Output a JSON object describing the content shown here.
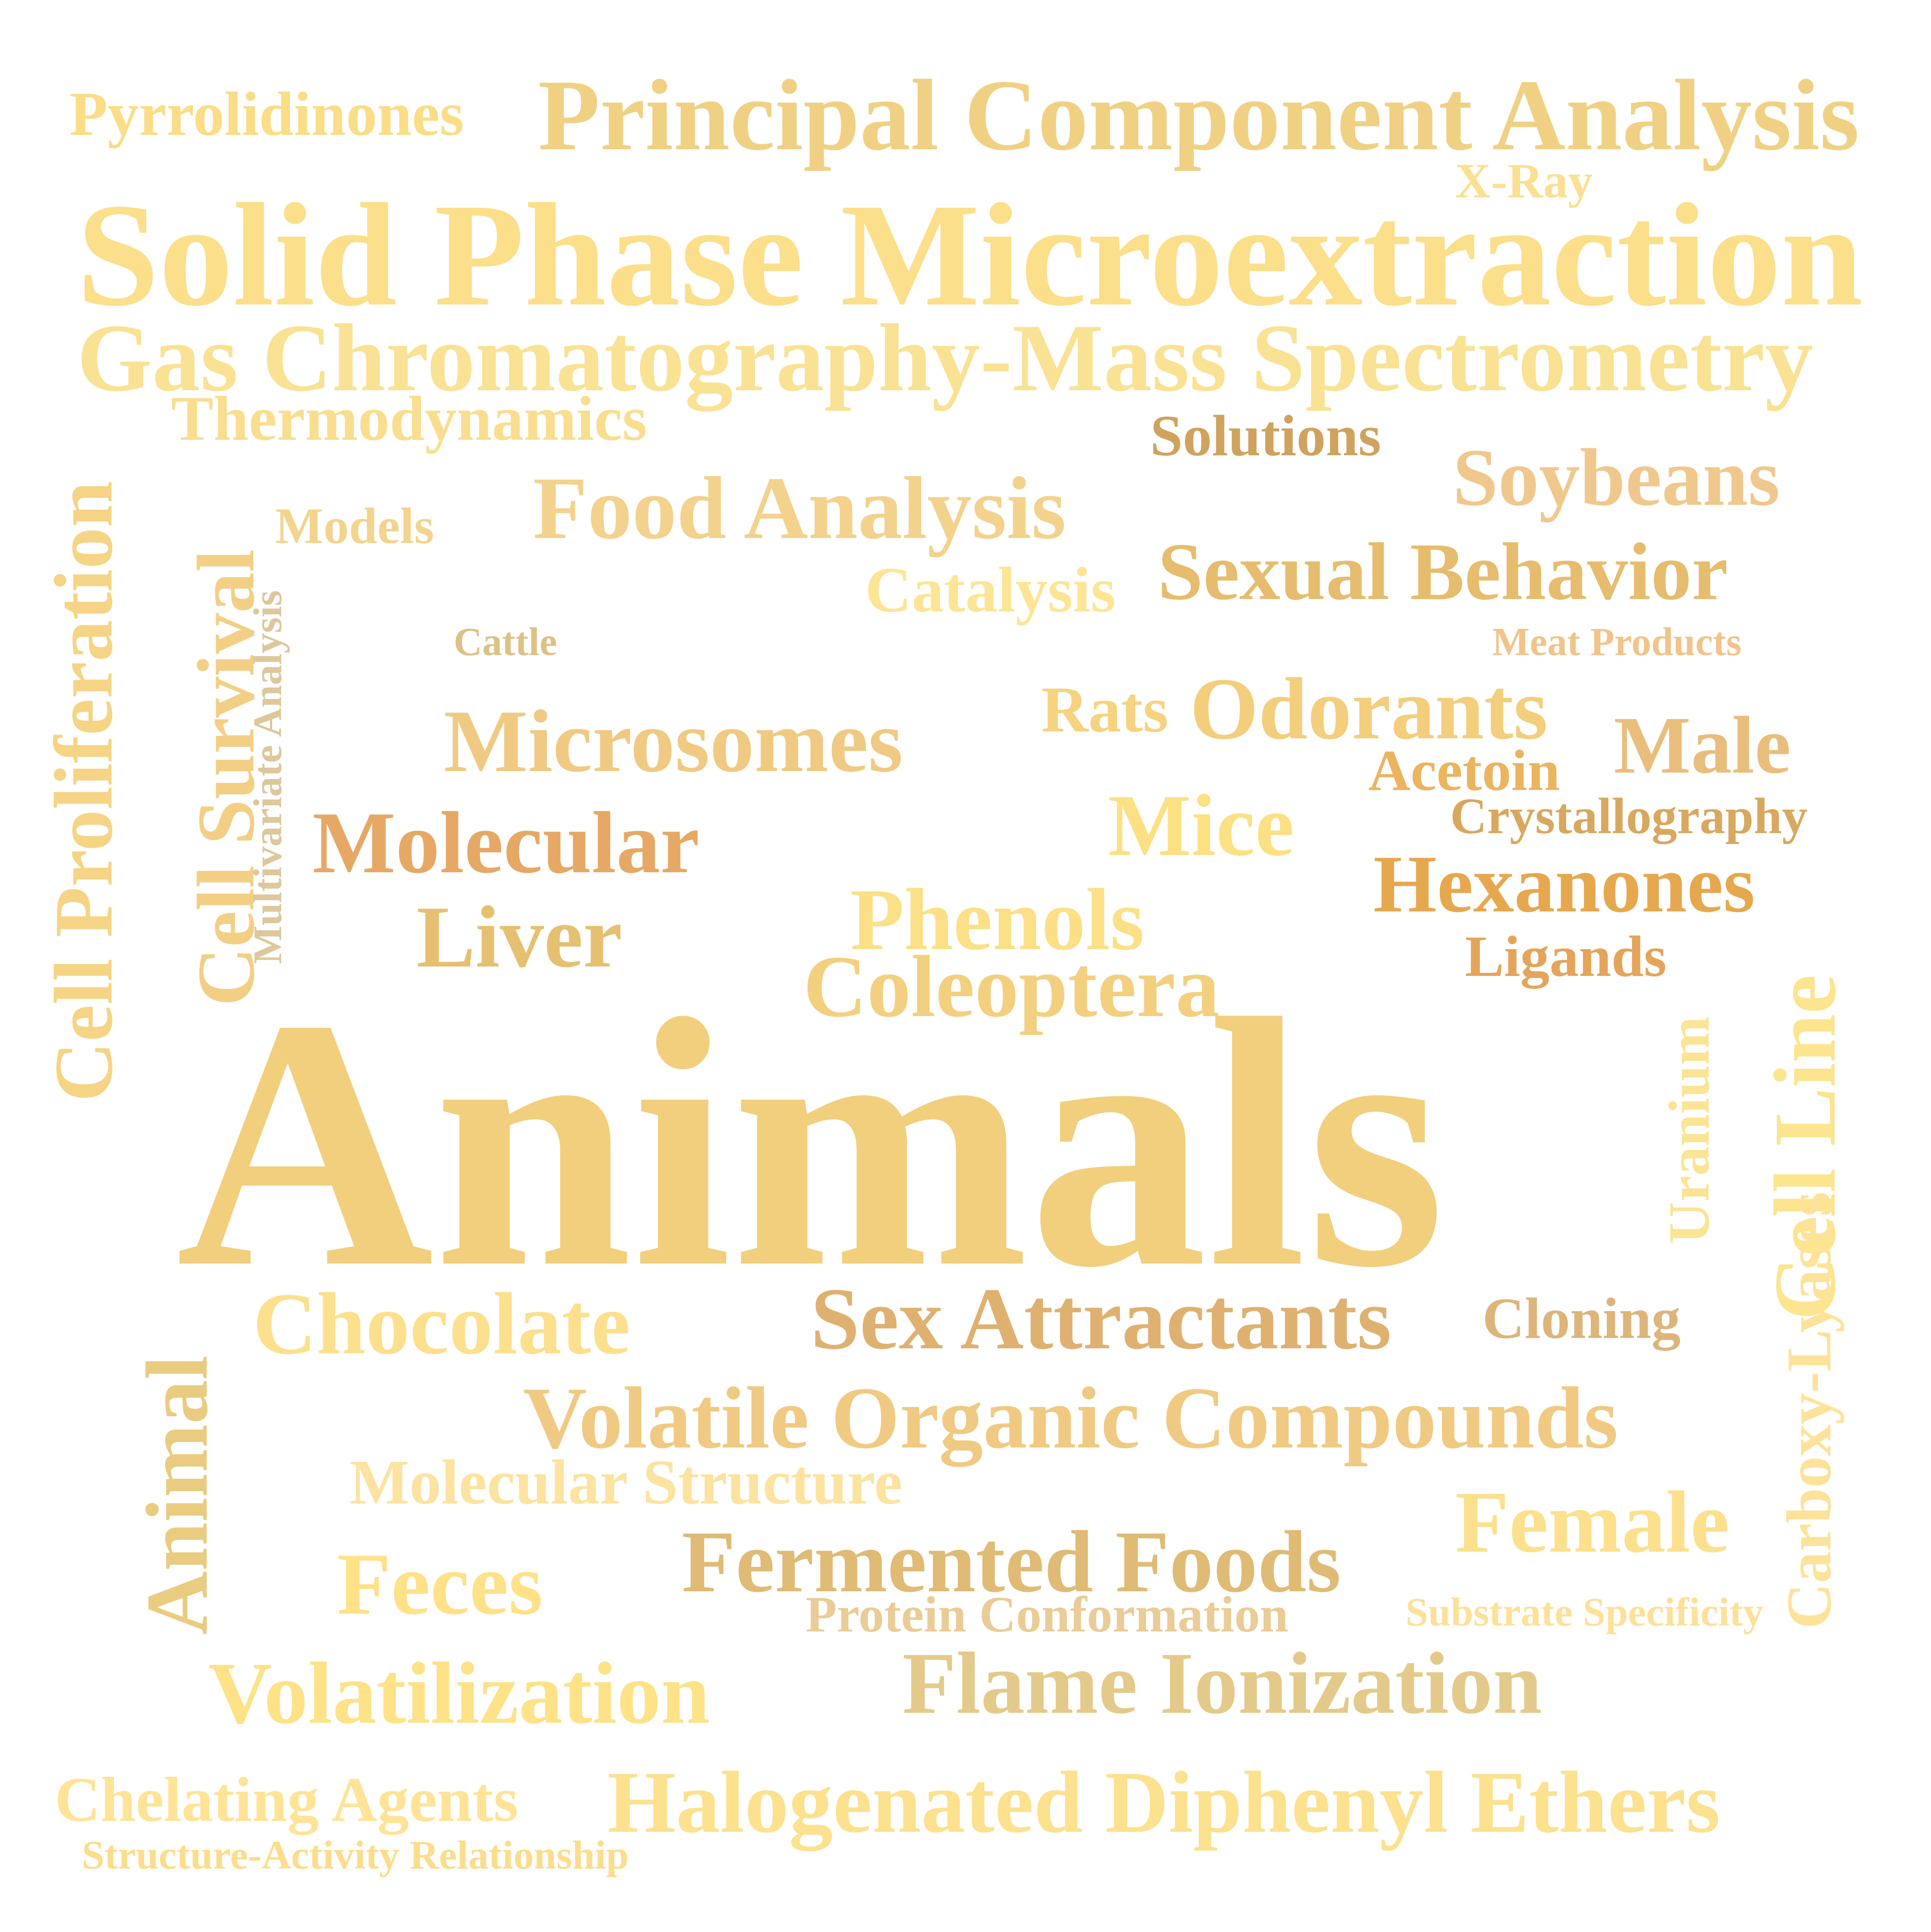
{
  "words": [
    {
      "text": "Pyrrolidinones",
      "color": "#FADD86"
    },
    {
      "text": "Principal Component Analysis",
      "color": "#F0D184"
    },
    {
      "text": "X-Ray",
      "color": "#FBE093"
    },
    {
      "text": "Solid Phase Microextraction",
      "color": "#FBDF8A"
    },
    {
      "text": "Gas Chromatography-Mass Spectrometry",
      "color": "#FAE294"
    },
    {
      "text": "Thermodynamics",
      "color": "#FADE8F"
    },
    {
      "text": "Solutions",
      "color": "#CFA35D"
    },
    {
      "text": "Soybeans",
      "color": "#F0C88D"
    },
    {
      "text": "Food Analysis",
      "color": "#F3D28D"
    },
    {
      "text": "Models",
      "color": "#F3D48E"
    },
    {
      "text": "Sexual Behavior",
      "color": "#E6BD6E"
    },
    {
      "text": "Catalysis",
      "color": "#FDE595"
    },
    {
      "text": "Cattle",
      "color": "#DCC287"
    },
    {
      "text": "Meat Products",
      "color": "#F1C48A"
    },
    {
      "text": "Cell Proliferation",
      "color": "#F5D485"
    },
    {
      "text": "Cell Survival",
      "color": "#F3CF86"
    },
    {
      "text": "Multivariate Analysis",
      "color": "#DDC79B"
    },
    {
      "text": "Rats",
      "color": "#F6D380"
    },
    {
      "text": "Odorants",
      "color": "#F3CE7C"
    },
    {
      "text": "Microsomes",
      "color": "#F0CA83"
    },
    {
      "text": "Male",
      "color": "#E9BE7C"
    },
    {
      "text": "Acetoin",
      "color": "#EBB45F"
    },
    {
      "text": "Crystallography",
      "color": "#D8A85F"
    },
    {
      "text": "Molecular",
      "color": "#E5A965"
    },
    {
      "text": "Mice",
      "color": "#FBE183"
    },
    {
      "text": "Hexanones",
      "color": "#E6A84F"
    },
    {
      "text": "Liver",
      "color": "#E6C071"
    },
    {
      "text": "Phenols",
      "color": "#FBE087"
    },
    {
      "text": "Ligands",
      "color": "#E4A55A"
    },
    {
      "text": "Coleoptera",
      "color": "#F3D07F"
    },
    {
      "text": "Uranium",
      "color": "#FBE494"
    },
    {
      "text": "Cell Line",
      "color": "#FDE58F"
    },
    {
      "text": "Animals",
      "color": "#F1CF7D"
    },
    {
      "text": "Chocolate",
      "color": "#FCE08D"
    },
    {
      "text": "Sex Attractants",
      "color": "#DFB170"
    },
    {
      "text": "Cloning",
      "color": "#DDB57A"
    },
    {
      "text": "Carboxy-Lyases",
      "color": "#FDE39A"
    },
    {
      "text": "Animal",
      "color": "#E9CC7F"
    },
    {
      "text": "Volatile Organic Compounds",
      "color": "#F0CA82"
    },
    {
      "text": "Molecular Structure",
      "color": "#FCE3A0"
    },
    {
      "text": "Female",
      "color": "#FCE08D"
    },
    {
      "text": "Feces",
      "color": "#FFE187"
    },
    {
      "text": "Fermented Foods",
      "color": "#E0BB75"
    },
    {
      "text": "Protein Conformation",
      "color": "#EACC96"
    },
    {
      "text": "Substrate Specificity",
      "color": "#FDE199"
    },
    {
      "text": "Volatilization",
      "color": "#FDE288"
    },
    {
      "text": "Flame Ionization",
      "color": "#E4CA8A"
    },
    {
      "text": "Chelating Agents",
      "color": "#FFE397"
    },
    {
      "text": "Halogenated Diphenyl Ethers",
      "color": "#FCE18F"
    },
    {
      "text": "Structure-Activity Relationship",
      "color": "#FCDD8C"
    }
  ]
}
